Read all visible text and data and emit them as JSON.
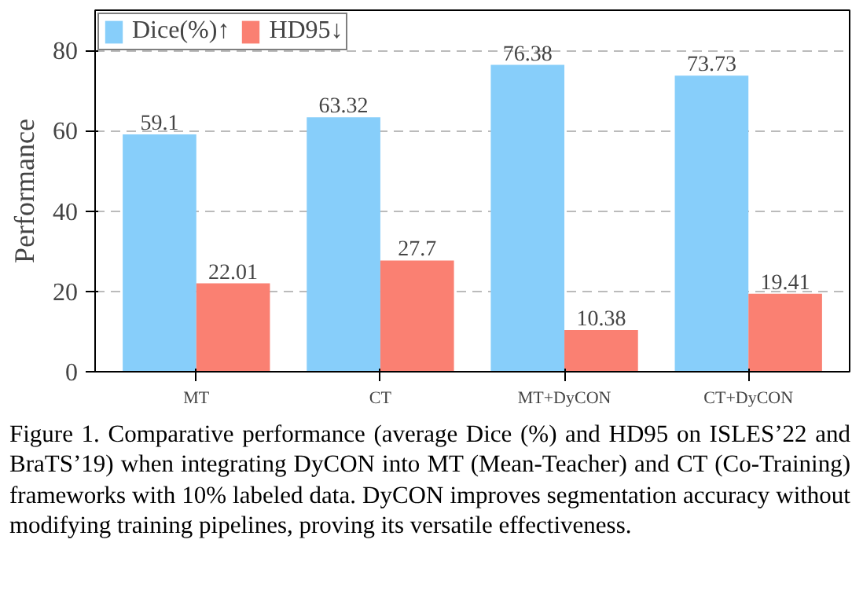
{
  "chart_data": {
    "type": "bar",
    "ylabel": "Performance",
    "categories": [
      "MT",
      "CT",
      "MT+DyCON",
      "CT+DyCON"
    ],
    "series": [
      {
        "name": "Dice(%)↑",
        "color": "#87cefa",
        "values": [
          59.1,
          63.32,
          76.38,
          73.73
        ]
      },
      {
        "name": "HD95↓",
        "color": "#fa8072",
        "values": [
          22.01,
          27.7,
          10.38,
          19.41
        ]
      }
    ],
    "ylim": [
      0,
      90
    ],
    "yticks": [
      0,
      20,
      40,
      60,
      80
    ],
    "grid": "y",
    "legend": "top left",
    "data_labels": true,
    "annotations": [
      "Figure 1. Comparative performance (average Dice (%) and HD95 on ISLES’22 and BraTS’19) when integrating DyCON into MT (Mean-Teacher) and CT (Co-Training) frameworks with 10% labeled data. DyCON improves segmentation accuracy without modifying training pipelines, proving its versatile effectiveness."
    ]
  }
}
